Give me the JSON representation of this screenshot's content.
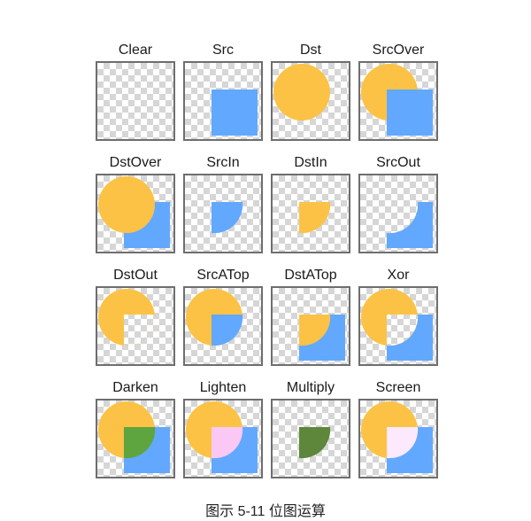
{
  "modes": [
    {
      "label": "Clear"
    },
    {
      "label": "Src"
    },
    {
      "label": "Dst"
    },
    {
      "label": "SrcOver"
    },
    {
      "label": "DstOver"
    },
    {
      "label": "SrcIn"
    },
    {
      "label": "DstIn"
    },
    {
      "label": "SrcOut"
    },
    {
      "label": "DstOut"
    },
    {
      "label": "SrcATop"
    },
    {
      "label": "DstATop"
    },
    {
      "label": "Xor"
    },
    {
      "label": "Darken"
    },
    {
      "label": "Lighten"
    },
    {
      "label": "Multiply"
    },
    {
      "label": "Screen"
    }
  ],
  "colors": {
    "dst": "#fbc246",
    "src": "#62a8fe",
    "darken_overlap": "#5ea43f",
    "lighten_overlap": "#fbc8f6",
    "multiply_overlap": "#5e873b",
    "screen_overlap": "#fce9fd",
    "tile_border": "#6e6e6e"
  },
  "caption": "图示 5-11  位图运算"
}
